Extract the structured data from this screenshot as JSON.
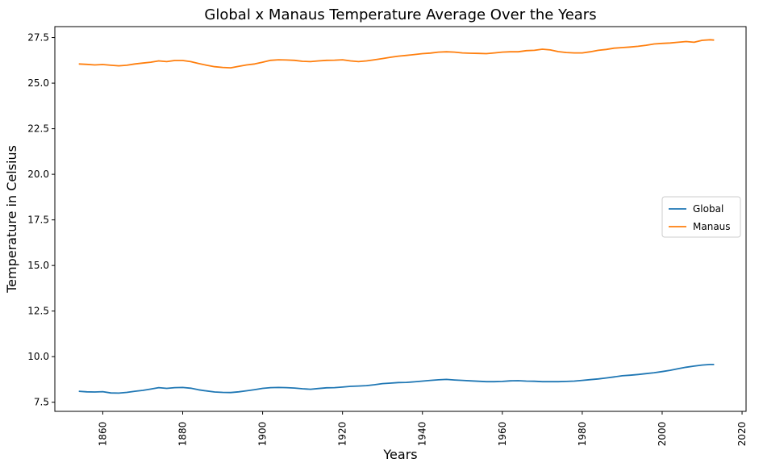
{
  "chart_data": {
    "type": "line",
    "title": "Global x Manaus Temperature Average Over the Years",
    "xlabel": "Years",
    "ylabel": "Temperature in Celsius",
    "xlim": [
      1848,
      2021
    ],
    "ylim": [
      7.0,
      28.1
    ],
    "xticks": [
      1860,
      1880,
      1900,
      1920,
      1940,
      1960,
      1980,
      2000,
      2020
    ],
    "yticks": [
      7.5,
      10.0,
      12.5,
      15.0,
      17.5,
      20.0,
      22.5,
      25.0,
      27.5
    ],
    "grid": false,
    "legend": "center-right",
    "x": [
      1854,
      1856,
      1858,
      1860,
      1862,
      1864,
      1866,
      1868,
      1870,
      1872,
      1874,
      1876,
      1878,
      1880,
      1882,
      1884,
      1886,
      1888,
      1890,
      1892,
      1894,
      1896,
      1898,
      1900,
      1902,
      1904,
      1906,
      1908,
      1910,
      1912,
      1914,
      1916,
      1918,
      1920,
      1922,
      1924,
      1926,
      1928,
      1930,
      1932,
      1934,
      1936,
      1938,
      1940,
      1942,
      1944,
      1946,
      1948,
      1950,
      1952,
      1954,
      1956,
      1958,
      1960,
      1962,
      1964,
      1966,
      1968,
      1970,
      1972,
      1974,
      1976,
      1978,
      1980,
      1982,
      1984,
      1986,
      1988,
      1990,
      1992,
      1994,
      1996,
      1998,
      2000,
      2002,
      2004,
      2006,
      2008,
      2010,
      2012,
      2013
    ],
    "series": [
      {
        "name": "Global",
        "color": "#1f77b4",
        "values": [
          8.1,
          8.07,
          8.06,
          8.08,
          8.01,
          8.0,
          8.04,
          8.1,
          8.15,
          8.22,
          8.3,
          8.26,
          8.3,
          8.31,
          8.27,
          8.18,
          8.12,
          8.06,
          8.04,
          8.03,
          8.07,
          8.13,
          8.19,
          8.26,
          8.3,
          8.31,
          8.3,
          8.28,
          8.24,
          8.21,
          8.25,
          8.29,
          8.3,
          8.33,
          8.37,
          8.39,
          8.41,
          8.46,
          8.52,
          8.55,
          8.58,
          8.59,
          8.62,
          8.66,
          8.7,
          8.73,
          8.75,
          8.72,
          8.7,
          8.67,
          8.65,
          8.63,
          8.63,
          8.64,
          8.67,
          8.68,
          8.66,
          8.65,
          8.63,
          8.63,
          8.63,
          8.64,
          8.66,
          8.7,
          8.74,
          8.78,
          8.83,
          8.89,
          8.95,
          8.98,
          9.02,
          9.07,
          9.12,
          9.18,
          9.25,
          9.34,
          9.42,
          9.48,
          9.54,
          9.57,
          9.57
        ]
      },
      {
        "name": "Manaus",
        "color": "#ff7f0e",
        "values": [
          26.05,
          26.03,
          26.0,
          26.02,
          25.98,
          25.95,
          25.98,
          26.05,
          26.1,
          26.15,
          26.22,
          26.18,
          26.24,
          26.24,
          26.18,
          26.08,
          25.98,
          25.9,
          25.86,
          25.84,
          25.92,
          26.0,
          26.05,
          26.15,
          26.25,
          26.28,
          26.27,
          26.25,
          26.2,
          26.18,
          26.22,
          26.25,
          26.26,
          26.28,
          26.22,
          26.18,
          26.22,
          26.28,
          26.35,
          26.42,
          26.48,
          26.52,
          26.57,
          26.62,
          26.65,
          26.7,
          26.72,
          26.7,
          26.66,
          26.64,
          26.63,
          26.62,
          26.66,
          26.7,
          26.72,
          26.72,
          26.78,
          26.8,
          26.86,
          26.82,
          26.73,
          26.68,
          26.66,
          26.66,
          26.72,
          26.8,
          26.85,
          26.92,
          26.95,
          26.98,
          27.02,
          27.08,
          27.15,
          27.18,
          27.2,
          27.24,
          27.28,
          27.24,
          27.35,
          27.38,
          27.36
        ]
      }
    ]
  }
}
